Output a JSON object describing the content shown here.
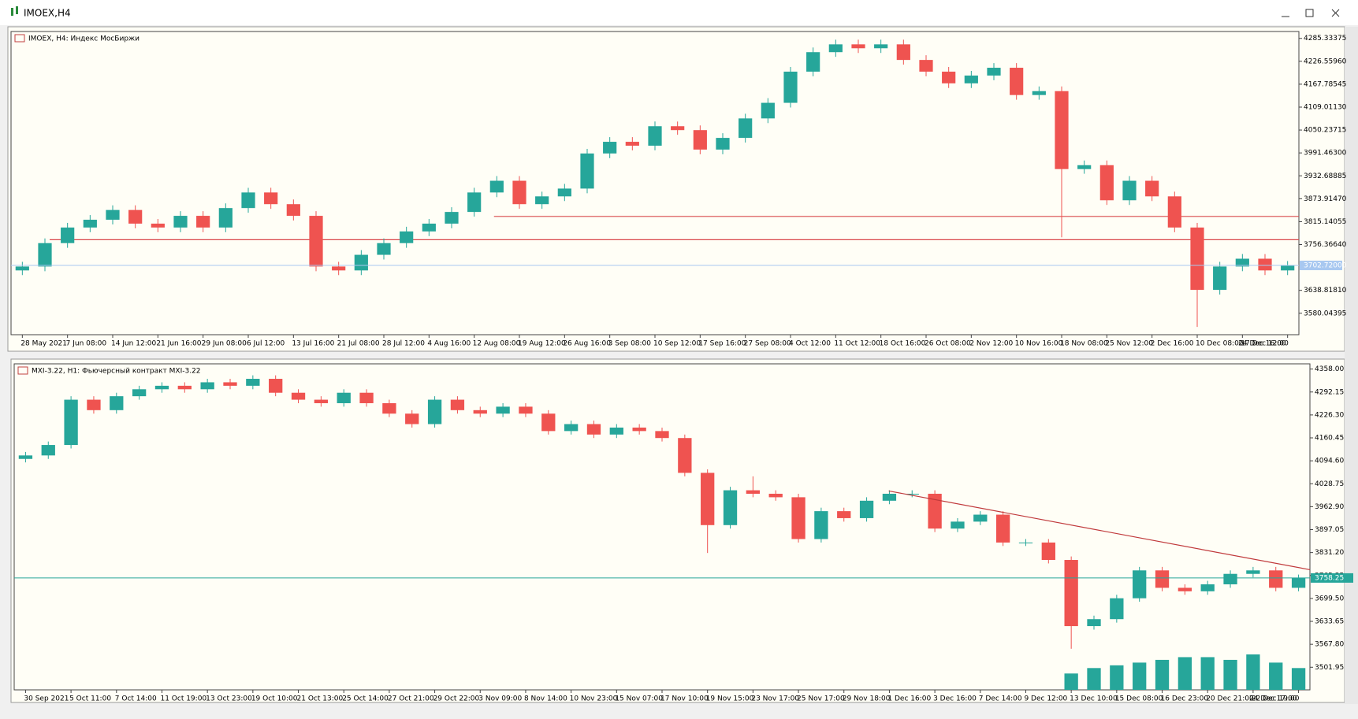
{
  "window": {
    "title": "IMOEX,H4"
  },
  "chart_data": [
    {
      "type": "candlestick",
      "title": "IMOEX, H4:  Индекс МосБиржи",
      "up_color": "#26a69a",
      "down_color": "#ef5350",
      "last_color": "#a8c8f0",
      "categories": [
        "28 May 2021",
        null,
        "7 Jun 08:00",
        null,
        "14 Jun 12:00",
        null,
        "21 Jun 16:00",
        null,
        "29 Jun 08:00",
        null,
        "6 Jul 12:00",
        null,
        "13 Jul 16:00",
        null,
        "21 Jul 08:00",
        null,
        "28 Jul 12:00",
        null,
        "4 Aug 16:00",
        null,
        "12 Aug 08:00",
        null,
        "19 Aug 12:00",
        null,
        "26 Aug 16:00",
        null,
        "3 Sep 08:00",
        null,
        "10 Sep 12:00",
        null,
        "17 Sep 16:00",
        null,
        "27 Sep 08:00",
        null,
        "4 Oct 12:00",
        null,
        "11 Oct 12:00",
        null,
        "18 Oct 16:00",
        null,
        "26 Oct 08:00",
        null,
        "2 Nov 12:00",
        null,
        "10 Nov 16:00",
        null,
        "18 Nov 08:00",
        null,
        "25 Nov 12:00",
        null,
        "2 Dec 16:00",
        null,
        "10 Dec 08:00",
        null,
        "17 Dec 12:00",
        null,
        "24 Dec 16:00"
      ],
      "open": [
        3690,
        3700,
        3760,
        3800,
        3820,
        3845,
        3810,
        3800,
        3830,
        3800,
        3850,
        3890,
        3860,
        3830,
        3700,
        3690,
        3730,
        3760,
        3790,
        3810,
        3840,
        3890,
        3920,
        3860,
        3880,
        3900,
        3990,
        4020,
        4010,
        4060,
        4050,
        4000,
        4030,
        4080,
        4120,
        4200,
        4250,
        4270,
        4260,
        4270,
        4230,
        4200,
        4170,
        4190,
        4210,
        4140,
        4150,
        3950,
        3960,
        3870,
        3920,
        3880,
        3800,
        3640,
        3700,
        3720,
        3690
      ],
      "high": [
        3712,
        3772,
        3812,
        3832,
        3857,
        3857,
        3822,
        3842,
        3842,
        3862,
        3902,
        3902,
        3872,
        3842,
        3712,
        3742,
        3772,
        3802,
        3822,
        3852,
        3902,
        3932,
        3932,
        3892,
        3912,
        4002,
        4032,
        4032,
        4072,
        4072,
        4062,
        4042,
        4092,
        4132,
        4212,
        4262,
        4282,
        4282,
        4282,
        4282,
        4242,
        4212,
        4202,
        4222,
        4222,
        4162,
        4162,
        3972,
        3972,
        3932,
        3932,
        3892,
        3812,
        3712,
        3732,
        3732,
        3714
      ],
      "low": [
        3678,
        3688,
        3748,
        3788,
        3808,
        3798,
        3788,
        3788,
        3788,
        3788,
        3838,
        3848,
        3818,
        3688,
        3678,
        3678,
        3718,
        3748,
        3778,
        3798,
        3828,
        3878,
        3848,
        3848,
        3868,
        3888,
        3978,
        3998,
        3998,
        4038,
        3988,
        3988,
        4018,
        4068,
        4108,
        4188,
        4238,
        4248,
        4248,
        4218,
        4188,
        4158,
        4158,
        4178,
        4128,
        4128,
        3775,
        3938,
        3858,
        3858,
        3868,
        3788,
        3545,
        3628,
        3688,
        3678,
        3678
      ],
      "close": [
        3700,
        3760,
        3800,
        3820,
        3845,
        3810,
        3800,
        3830,
        3800,
        3850,
        3890,
        3860,
        3830,
        3700,
        3690,
        3730,
        3760,
        3790,
        3810,
        3840,
        3890,
        3920,
        3860,
        3880,
        3900,
        3990,
        4020,
        4010,
        4060,
        4050,
        4000,
        4030,
        4080,
        4120,
        4200,
        4250,
        4270,
        4260,
        4270,
        4230,
        4200,
        4170,
        4190,
        4210,
        4140,
        4150,
        3950,
        3960,
        3870,
        3920,
        3880,
        3800,
        3640,
        3700,
        3720,
        3690,
        3702.72
      ],
      "ylim": [
        3525,
        4303
      ],
      "yticks": [
        4285.33375,
        {
          "value": 4226.5596,
          "label": "4226.55960"
        },
        4167.78545,
        {
          "value": 4109.0113,
          "label": "4109.01130"
        },
        4050.23715,
        {
          "value": 3991.463,
          "label": "3991.46300"
        },
        3932.68885,
        {
          "value": 3873.9147,
          "label": "3873.91470"
        },
        3815.14055,
        {
          "value": 3756.3664,
          "label": "3756.36640"
        },
        {
          "value": 3638.8181,
          "label": "3638.81810"
        },
        3580.04395
      ],
      "last_price": {
        "value": 3702.72,
        "label": "3702.72000"
      },
      "hlines": [
        {
          "value": 3768.7,
          "color": "#d9484c"
        },
        {
          "value": 3828.5,
          "color": "#d9484c"
        }
      ]
    },
    {
      "type": "candlestick",
      "title": "MXI-3.22, H1:  Фьючерсный контракт MXI-3.22",
      "up_color": "#26a69a",
      "down_color": "#ef5350",
      "last_color": "#26a69a",
      "categories": [
        "30 Sep 2021",
        null,
        "5 Oct 11:00",
        null,
        "7 Oct 14:00",
        null,
        "11 Oct 19:00",
        null,
        "13 Oct 23:00",
        null,
        "19 Oct 10:00",
        null,
        "21 Oct 13:00",
        null,
        "25 Oct 14:00",
        null,
        "27 Oct 21:00",
        null,
        "29 Oct 22:00",
        null,
        "3 Nov 09:00",
        null,
        "8 Nov 14:00",
        null,
        "10 Nov 23:00",
        null,
        "15 Nov 07:00",
        null,
        "17 Nov 10:00",
        null,
        "19 Nov 15:00",
        null,
        "23 Nov 17:00",
        null,
        "25 Nov 17:00",
        null,
        "29 Nov 18:00",
        null,
        "1 Dec 16:00",
        null,
        "3 Dec 16:00",
        null,
        "7 Dec 14:00",
        null,
        "9 Dec 12:00",
        null,
        "13 Dec 10:00",
        null,
        "15 Dec 08:00",
        null,
        "16 Dec 23:00",
        null,
        "20 Dec 21:00",
        null,
        "22 Dec 19:00",
        null,
        "24 Dec 17:00"
      ],
      "open": [
        4100,
        4110,
        4140,
        4270,
        4240,
        4280,
        4300,
        4310,
        4300,
        4320,
        4310,
        4330,
        4290,
        4270,
        4260,
        4290,
        4260,
        4230,
        4200,
        4270,
        4240,
        4230,
        4250,
        4230,
        4180,
        4200,
        4170,
        4190,
        4180,
        4160,
        4060,
        3910,
        4010,
        4000,
        3990,
        3870,
        3950,
        3930,
        3980,
        4000,
        4000,
        3900,
        3920,
        3940,
        3860,
        3860,
        3810,
        3620,
        3640,
        3700,
        3780,
        3730,
        3720,
        3740,
        3770,
        3780,
        3730
      ],
      "high": [
        4120,
        4150,
        4280,
        4280,
        4290,
        4310,
        4320,
        4320,
        4330,
        4330,
        4340,
        4340,
        4300,
        4280,
        4300,
        4300,
        4270,
        4240,
        4280,
        4280,
        4250,
        4260,
        4260,
        4240,
        4210,
        4210,
        4200,
        4200,
        4190,
        4170,
        4070,
        4020,
        4050,
        4010,
        4000,
        3960,
        3960,
        3990,
        4010,
        4010,
        4010,
        3930,
        3950,
        3950,
        3870,
        3870,
        3820,
        3650,
        3710,
        3790,
        3790,
        3740,
        3750,
        3780,
        3790,
        3790,
        3768
      ],
      "low": [
        4090,
        4100,
        4130,
        4230,
        4230,
        4270,
        4290,
        4290,
        4290,
        4300,
        4300,
        4280,
        4260,
        4250,
        4250,
        4250,
        4220,
        4190,
        4190,
        4230,
        4220,
        4220,
        4220,
        4170,
        4170,
        4160,
        4160,
        4170,
        4150,
        4050,
        3830,
        3900,
        3990,
        3980,
        3860,
        3860,
        3920,
        3920,
        3970,
        3990,
        3890,
        3890,
        3910,
        3850,
        3850,
        3800,
        3555,
        3610,
        3630,
        3690,
        3720,
        3710,
        3710,
        3730,
        3760,
        3720,
        3720
      ],
      "close": [
        4110,
        4140,
        4270,
        4240,
        4280,
        4300,
        4310,
        4300,
        4320,
        4310,
        4330,
        4290,
        4270,
        4260,
        4290,
        4260,
        4230,
        4200,
        4270,
        4240,
        4230,
        4250,
        4230,
        4180,
        4200,
        4170,
        4190,
        4180,
        4160,
        4060,
        3910,
        4010,
        4000,
        3990,
        3870,
        3950,
        3930,
        3980,
        4000,
        4000,
        3900,
        3920,
        3940,
        3860,
        3860,
        3810,
        3620,
        3640,
        3700,
        3780,
        3730,
        3720,
        3740,
        3770,
        3780,
        3730,
        3758.25
      ],
      "volumes": [
        0,
        0,
        0,
        0,
        0,
        0,
        0,
        0,
        0,
        0,
        0,
        0,
        0,
        0,
        0,
        0,
        0,
        0,
        0,
        0,
        0,
        0,
        0,
        0,
        0,
        0,
        0,
        0,
        0,
        0,
        0,
        0,
        0,
        0,
        0,
        0,
        0,
        0,
        0,
        0,
        0,
        0,
        0,
        0,
        0,
        0,
        30,
        40,
        45,
        50,
        55,
        60,
        60,
        55,
        65,
        50,
        40
      ],
      "volume_color": "#26a69a",
      "ylim": [
        3437,
        4373
      ],
      "yticks": [
        {
          "value": 4358,
          "label": "4358.00"
        },
        4292.15,
        {
          "value": 4226.3,
          "label": "4226.30"
        },
        4160.45,
        {
          "value": 4094.6,
          "label": "4094.60"
        },
        4028.75,
        {
          "value": 3962.9,
          "label": "3962.90"
        },
        3897.05,
        {
          "value": 3831.2,
          "label": "3831.20"
        },
        3765.35,
        {
          "value": 3699.5,
          "label": "3699.50"
        },
        3633.65,
        {
          "value": 3567.8,
          "label": "3567.80"
        },
        3501.95
      ],
      "last_price": {
        "value": 3758.25,
        "label": "3758.25"
      },
      "trendline": {
        "values": [
          4008,
          3782
        ],
        "color": "#c0393b"
      }
    }
  ]
}
